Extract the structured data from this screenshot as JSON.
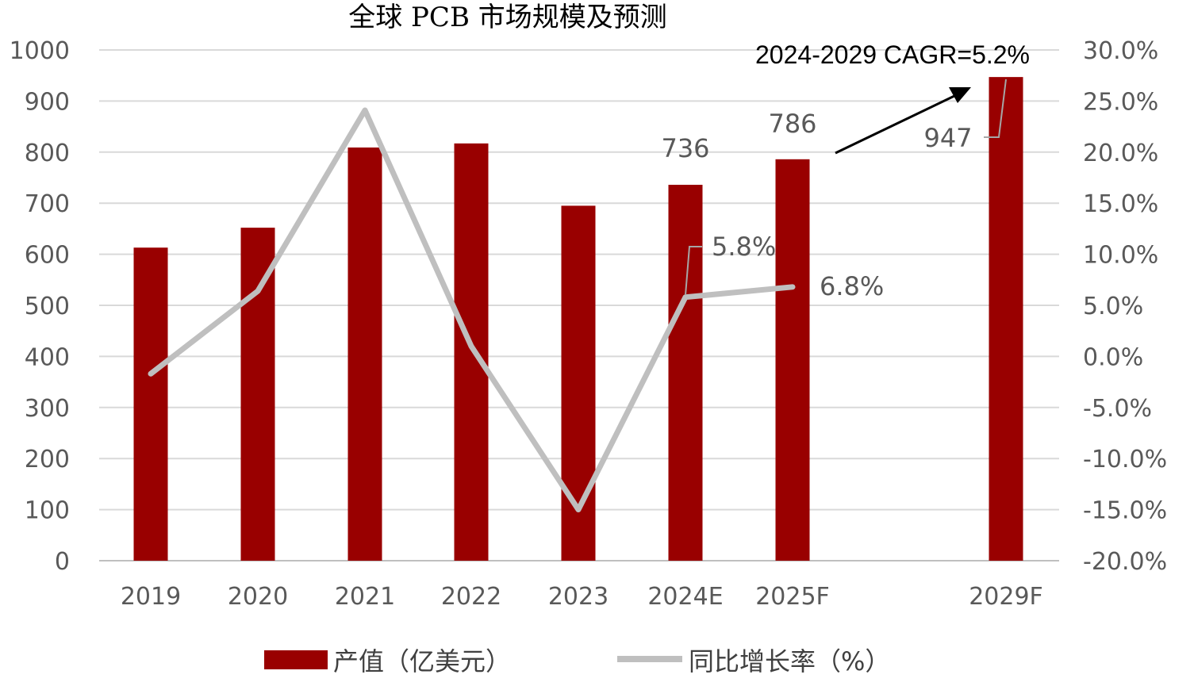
{
  "chart_data": {
    "type": "bar+line",
    "title": "全球 PCB 市场规模及预测",
    "annotation": "2024-2029 CAGR=5.2%",
    "categories": [
      "2019",
      "2020",
      "2021",
      "2022",
      "2023",
      "2024E",
      "2025F",
      "2029F"
    ],
    "series": [
      {
        "name": "产值（亿美元）",
        "kind": "bar",
        "axis": "left",
        "color": "#990000",
        "values": [
          613,
          652,
          809,
          817,
          695,
          736,
          786,
          947
        ]
      },
      {
        "name": "同比增长率（%）",
        "kind": "line",
        "axis": "right",
        "color": "#bfbfbf",
        "values": [
          -1.7,
          6.4,
          24.1,
          1.0,
          -15.0,
          5.8,
          6.8,
          null
        ]
      }
    ],
    "data_labels": {
      "bar": [
        {
          "index": 5,
          "text": "736"
        },
        {
          "index": 6,
          "text": "786"
        },
        {
          "index": 7,
          "text": "947"
        }
      ],
      "line": [
        {
          "index": 5,
          "text": "5.8%"
        },
        {
          "index": 6,
          "text": "6.8%"
        }
      ]
    },
    "y_left": {
      "range": [
        0,
        1000
      ],
      "ticks": [
        "0",
        "100",
        "200",
        "300",
        "400",
        "500",
        "600",
        "700",
        "800",
        "900",
        "1000"
      ]
    },
    "y_right": {
      "range": [
        -20,
        30
      ],
      "ticks": [
        "-20.0%",
        "-15.0%",
        "-10.0%",
        "-5.0%",
        "0.0%",
        "5.0%",
        "10.0%",
        "15.0%",
        "20.0%",
        "25.0%",
        "30.0%"
      ]
    },
    "grid": true,
    "legend": "bottom"
  }
}
